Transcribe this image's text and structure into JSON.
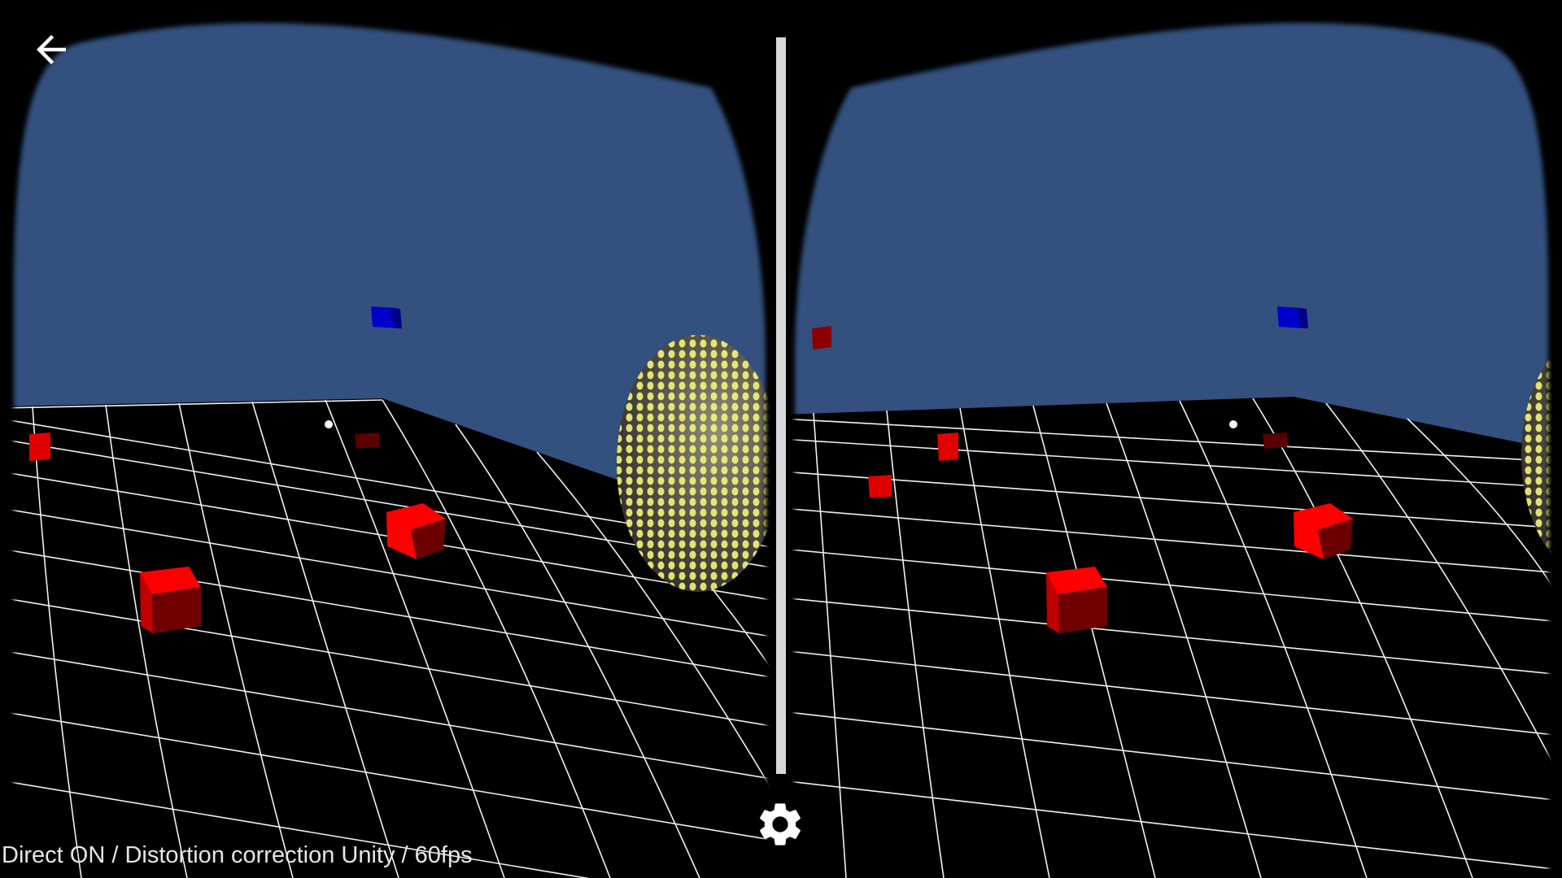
{
  "status_text": "Direct ON / Distortion correction Unity / 60fps",
  "icons": {
    "back": "arrow-back-icon",
    "settings": "gear-icon"
  },
  "colors": {
    "sky": "#33507e",
    "floor": "#000000",
    "grid": "#ffffff",
    "cube": "#ff0000",
    "target_cube": "#0000cc",
    "sphere_dots": "#f4f47a",
    "divider": "#d9d9d9",
    "status_text": "#e6e6e6"
  }
}
